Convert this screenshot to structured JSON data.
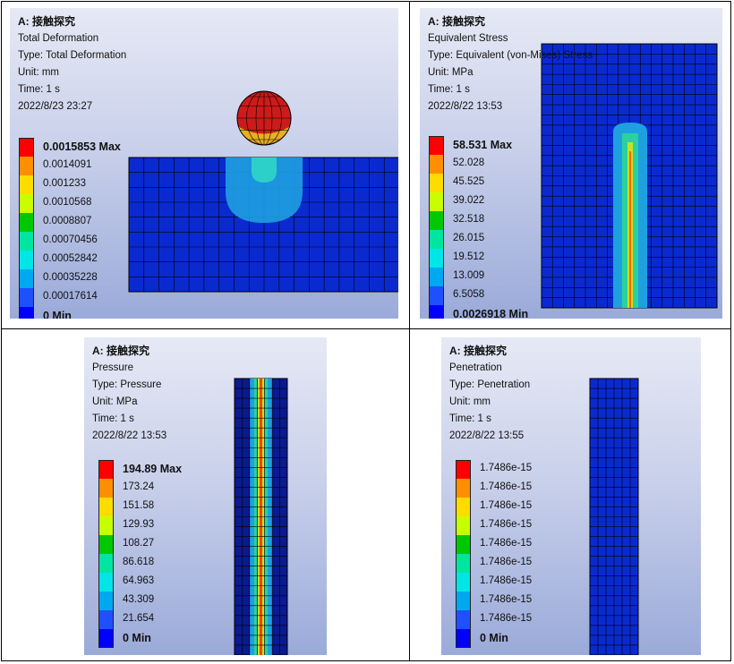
{
  "legend_colors": [
    "#ff0000",
    "#ff8f00",
    "#ffdc00",
    "#c8ff00",
    "#00c800",
    "#00e6a0",
    "#00e6e6",
    "#00a8f0",
    "#1e50ff",
    "#0000ff"
  ],
  "panels": [
    {
      "title": "A: 接触探究",
      "result": "Total Deformation",
      "type": "Type: Total Deformation",
      "unit": "Unit: mm",
      "time": "Time: 1 s",
      "date": "2022/8/23 23:27",
      "legend": [
        "0.0015853 Max",
        "0.0014091",
        "0.001233",
        "0.0010568",
        "0.0008807",
        "0.00070456",
        "0.00052842",
        "0.00035228",
        "0.00017614",
        "0 Min"
      ]
    },
    {
      "title": "A: 接触探究",
      "result": "Equivalent Stress",
      "type": "Type: Equivalent (von-Mises) Stress",
      "unit": "Unit: MPa",
      "time": "Time: 1 s",
      "date": "2022/8/22 13:53",
      "legend": [
        "58.531 Max",
        "52.028",
        "45.525",
        "39.022",
        "32.518",
        "26.015",
        "19.512",
        "13.009",
        "6.5058",
        "0.0026918 Min"
      ]
    },
    {
      "title": "A: 接触探究",
      "result": "Pressure",
      "type": "Type: Pressure",
      "unit": "Unit: MPa",
      "time": "Time: 1 s",
      "date": "2022/8/22 13:53",
      "legend": [
        "194.89 Max",
        "173.24",
        "151.58",
        "129.93",
        "108.27",
        "86.618",
        "64.963",
        "43.309",
        "21.654",
        "0 Min"
      ]
    },
    {
      "title": "A: 接触探究",
      "result": "Penetration",
      "type": "Type: Penetration",
      "unit": "Unit: mm",
      "time": "Time: 1 s",
      "date": "2022/8/22 13:55",
      "legend": [
        "1.7486e-15",
        "1.7486e-15",
        "1.7486e-15",
        "1.7486e-15",
        "1.7486e-15",
        "1.7486e-15",
        "1.7486e-15",
        "1.7486e-15",
        "1.7486e-15",
        "0 Min"
      ]
    }
  ]
}
